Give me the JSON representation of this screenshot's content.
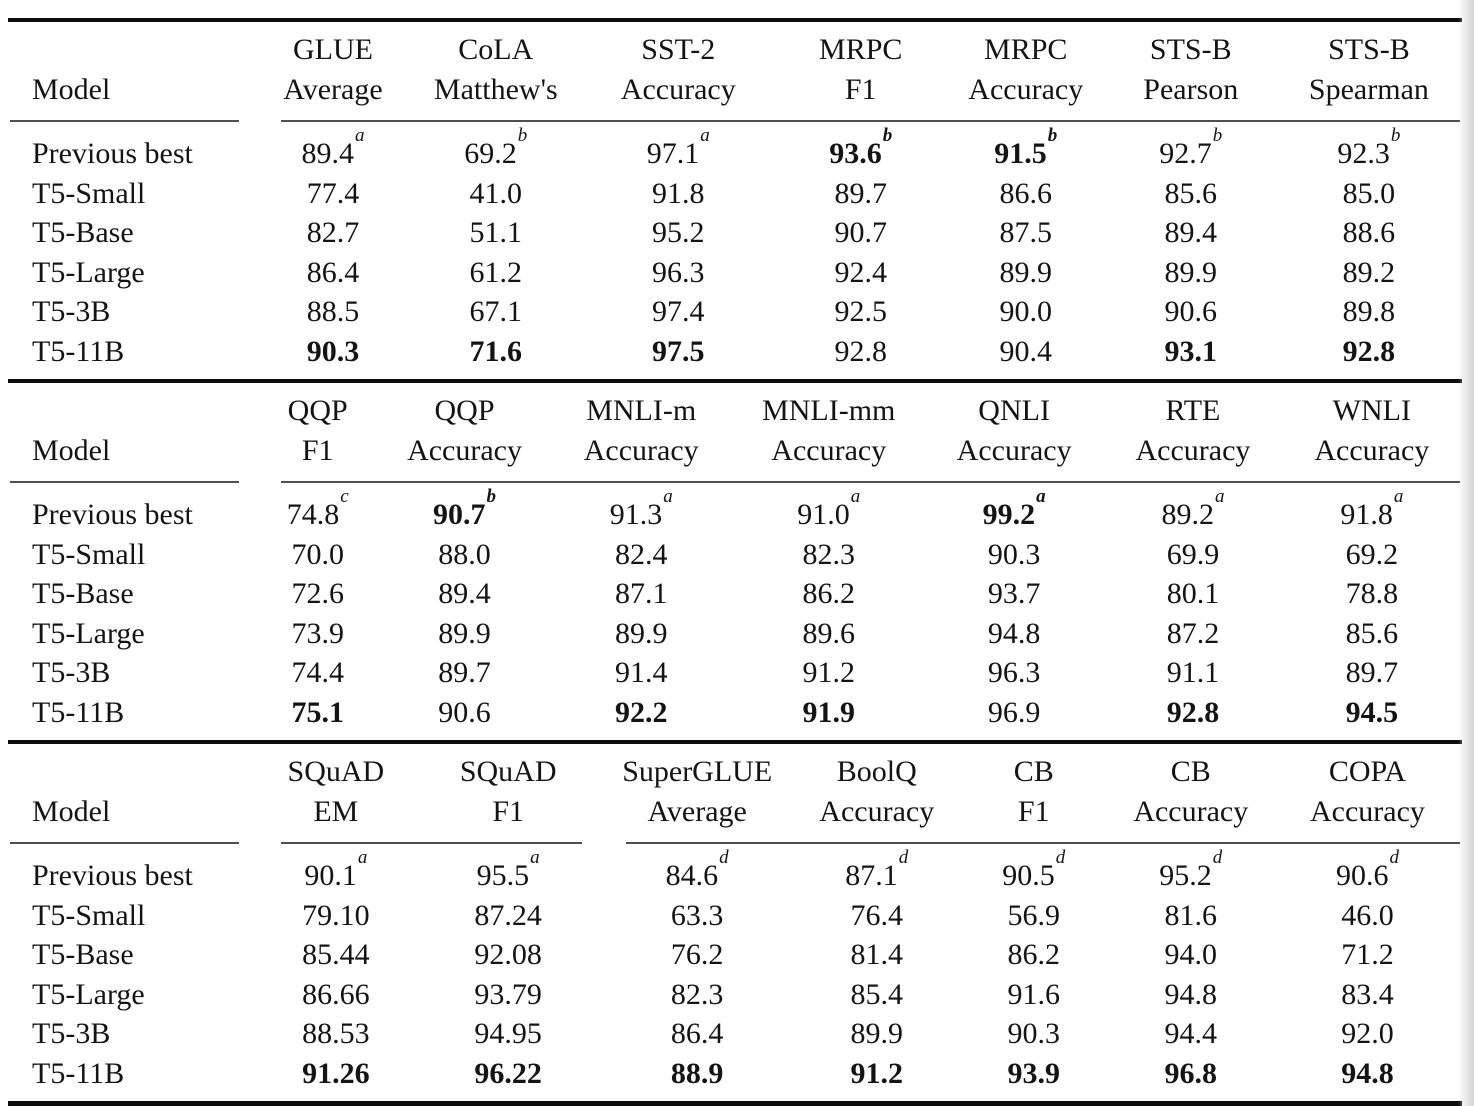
{
  "page": {
    "background": "#ffffff",
    "text_color": "#141414",
    "thick_rule_color": "#0d0d0d",
    "header_rule_color": "#4f4f4f"
  },
  "table": {
    "model_header": "Model",
    "sections": [
      {
        "columns": [
          {
            "line1": "GLUE",
            "line2": "Average"
          },
          {
            "line1": "CoLA",
            "line2": "Matthew's"
          },
          {
            "line1": "SST-2",
            "line2": "Accuracy"
          },
          {
            "line1": "MRPC",
            "line2": "F1"
          },
          {
            "line1": "MRPC",
            "line2": "Accuracy"
          },
          {
            "line1": "STS-B",
            "line2": "Pearson"
          },
          {
            "line1": "STS-B",
            "line2": "Spearman"
          }
        ],
        "header_rules": [
          {
            "span": 1
          },
          {
            "span": 7
          }
        ],
        "rows": [
          {
            "model": "Previous best",
            "cells": [
              {
                "value": "89.4",
                "sup": "a"
              },
              {
                "value": "69.2",
                "sup": "b"
              },
              {
                "value": "97.1",
                "sup": "a"
              },
              {
                "value": "93.6",
                "sup": "b",
                "bold": true
              },
              {
                "value": "91.5",
                "sup": "b",
                "bold": true
              },
              {
                "value": "92.7",
                "sup": "b"
              },
              {
                "value": "92.3",
                "sup": "b"
              }
            ]
          },
          {
            "model": "T5-Small",
            "cells": [
              {
                "value": "77.4"
              },
              {
                "value": "41.0"
              },
              {
                "value": "91.8"
              },
              {
                "value": "89.7"
              },
              {
                "value": "86.6"
              },
              {
                "value": "85.6"
              },
              {
                "value": "85.0"
              }
            ]
          },
          {
            "model": "T5-Base",
            "cells": [
              {
                "value": "82.7"
              },
              {
                "value": "51.1"
              },
              {
                "value": "95.2"
              },
              {
                "value": "90.7"
              },
              {
                "value": "87.5"
              },
              {
                "value": "89.4"
              },
              {
                "value": "88.6"
              }
            ]
          },
          {
            "model": "T5-Large",
            "cells": [
              {
                "value": "86.4"
              },
              {
                "value": "61.2"
              },
              {
                "value": "96.3"
              },
              {
                "value": "92.4"
              },
              {
                "value": "89.9"
              },
              {
                "value": "89.9"
              },
              {
                "value": "89.2"
              }
            ]
          },
          {
            "model": "T5-3B",
            "cells": [
              {
                "value": "88.5"
              },
              {
                "value": "67.1"
              },
              {
                "value": "97.4"
              },
              {
                "value": "92.5"
              },
              {
                "value": "90.0"
              },
              {
                "value": "90.6"
              },
              {
                "value": "89.8"
              }
            ]
          },
          {
            "model": "T5-11B",
            "cells": [
              {
                "value": "90.3",
                "bold": true
              },
              {
                "value": "71.6",
                "bold": true
              },
              {
                "value": "97.5",
                "bold": true
              },
              {
                "value": "92.8"
              },
              {
                "value": "90.4"
              },
              {
                "value": "93.1",
                "bold": true
              },
              {
                "value": "92.8",
                "bold": true
              }
            ]
          }
        ]
      },
      {
        "columns": [
          {
            "line1": "QQP",
            "line2": "F1"
          },
          {
            "line1": "QQP",
            "line2": "Accuracy"
          },
          {
            "line1": "MNLI-m",
            "line2": "Accuracy"
          },
          {
            "line1": "MNLI-mm",
            "line2": "Accuracy"
          },
          {
            "line1": "QNLI",
            "line2": "Accuracy"
          },
          {
            "line1": "RTE",
            "line2": "Accuracy"
          },
          {
            "line1": "WNLI",
            "line2": "Accuracy"
          }
        ],
        "header_rules": [
          {
            "span": 1
          },
          {
            "span": 7
          }
        ],
        "rows": [
          {
            "model": "Previous best",
            "cells": [
              {
                "value": "74.8",
                "sup": "c"
              },
              {
                "value": "90.7",
                "sup": "b",
                "bold": true
              },
              {
                "value": "91.3",
                "sup": "a"
              },
              {
                "value": "91.0",
                "sup": "a"
              },
              {
                "value": "99.2",
                "sup": "a",
                "bold": true
              },
              {
                "value": "89.2",
                "sup": "a"
              },
              {
                "value": "91.8",
                "sup": "a"
              }
            ]
          },
          {
            "model": "T5-Small",
            "cells": [
              {
                "value": "70.0"
              },
              {
                "value": "88.0"
              },
              {
                "value": "82.4"
              },
              {
                "value": "82.3"
              },
              {
                "value": "90.3"
              },
              {
                "value": "69.9"
              },
              {
                "value": "69.2"
              }
            ]
          },
          {
            "model": "T5-Base",
            "cells": [
              {
                "value": "72.6"
              },
              {
                "value": "89.4"
              },
              {
                "value": "87.1"
              },
              {
                "value": "86.2"
              },
              {
                "value": "93.7"
              },
              {
                "value": "80.1"
              },
              {
                "value": "78.8"
              }
            ]
          },
          {
            "model": "T5-Large",
            "cells": [
              {
                "value": "73.9"
              },
              {
                "value": "89.9"
              },
              {
                "value": "89.9"
              },
              {
                "value": "89.6"
              },
              {
                "value": "94.8"
              },
              {
                "value": "87.2"
              },
              {
                "value": "85.6"
              }
            ]
          },
          {
            "model": "T5-3B",
            "cells": [
              {
                "value": "74.4"
              },
              {
                "value": "89.7"
              },
              {
                "value": "91.4"
              },
              {
                "value": "91.2"
              },
              {
                "value": "96.3"
              },
              {
                "value": "91.1"
              },
              {
                "value": "89.7"
              }
            ]
          },
          {
            "model": "T5-11B",
            "cells": [
              {
                "value": "75.1",
                "bold": true
              },
              {
                "value": "90.6"
              },
              {
                "value": "92.2",
                "bold": true
              },
              {
                "value": "91.9",
                "bold": true
              },
              {
                "value": "96.9"
              },
              {
                "value": "92.8",
                "bold": true
              },
              {
                "value": "94.5",
                "bold": true
              }
            ]
          }
        ]
      },
      {
        "columns": [
          {
            "line1": "SQuAD",
            "line2": "EM"
          },
          {
            "line1": "SQuAD",
            "line2": "F1"
          },
          {
            "line1": "SuperGLUE",
            "line2": "Average"
          },
          {
            "line1": "BoolQ",
            "line2": "Accuracy"
          },
          {
            "line1": "CB",
            "line2": "F1"
          },
          {
            "line1": "CB",
            "line2": "Accuracy"
          },
          {
            "line1": "COPA",
            "line2": "Accuracy"
          }
        ],
        "header_rules": [
          {
            "span": 1
          },
          {
            "span": 2
          },
          {
            "span": 5
          }
        ],
        "rows": [
          {
            "model": "Previous best",
            "cells": [
              {
                "value": "90.1",
                "sup": "a"
              },
              {
                "value": "95.5",
                "sup": "a"
              },
              {
                "value": "84.6",
                "sup": "d"
              },
              {
                "value": "87.1",
                "sup": "d"
              },
              {
                "value": "90.5",
                "sup": "d"
              },
              {
                "value": "95.2",
                "sup": "d"
              },
              {
                "value": "90.6",
                "sup": "d"
              }
            ]
          },
          {
            "model": "T5-Small",
            "cells": [
              {
                "value": "79.10"
              },
              {
                "value": "87.24"
              },
              {
                "value": "63.3"
              },
              {
                "value": "76.4"
              },
              {
                "value": "56.9"
              },
              {
                "value": "81.6"
              },
              {
                "value": "46.0"
              }
            ]
          },
          {
            "model": "T5-Base",
            "cells": [
              {
                "value": "85.44"
              },
              {
                "value": "92.08"
              },
              {
                "value": "76.2"
              },
              {
                "value": "81.4"
              },
              {
                "value": "86.2"
              },
              {
                "value": "94.0"
              },
              {
                "value": "71.2"
              }
            ]
          },
          {
            "model": "T5-Large",
            "cells": [
              {
                "value": "86.66"
              },
              {
                "value": "93.79"
              },
              {
                "value": "82.3"
              },
              {
                "value": "85.4"
              },
              {
                "value": "91.6"
              },
              {
                "value": "94.8"
              },
              {
                "value": "83.4"
              }
            ]
          },
          {
            "model": "T5-3B",
            "cells": [
              {
                "value": "88.53"
              },
              {
                "value": "94.95"
              },
              {
                "value": "86.4"
              },
              {
                "value": "89.9"
              },
              {
                "value": "90.3"
              },
              {
                "value": "94.4"
              },
              {
                "value": "92.0"
              }
            ]
          },
          {
            "model": "T5-11B",
            "cells": [
              {
                "value": "91.26",
                "bold": true
              },
              {
                "value": "96.22",
                "bold": true
              },
              {
                "value": "88.9",
                "bold": true
              },
              {
                "value": "91.2",
                "bold": true
              },
              {
                "value": "93.9",
                "bold": true
              },
              {
                "value": "96.8",
                "bold": true
              },
              {
                "value": "94.8",
                "bold": true
              }
            ]
          }
        ]
      }
    ]
  }
}
